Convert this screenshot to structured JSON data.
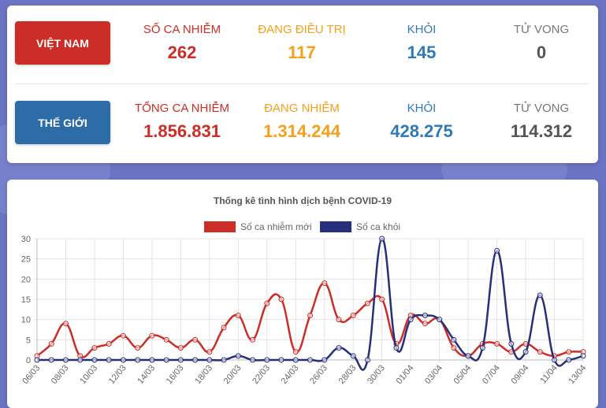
{
  "vietnam": {
    "label": "VIỆT NAM",
    "stats": [
      {
        "label": "SỐ CA NHIỄM",
        "value": "262"
      },
      {
        "label": "ĐANG ĐIỀU TRỊ",
        "value": "117"
      },
      {
        "label": "KHỎI",
        "value": "145"
      },
      {
        "label": "TỬ VONG",
        "value": "0"
      }
    ]
  },
  "world": {
    "label": "THẾ GIỚI",
    "stats": [
      {
        "label": "TỔNG CA NHIỄM",
        "value": "1.856.831"
      },
      {
        "label": "ĐANG NHIỄM",
        "value": "1.314.244"
      },
      {
        "label": "KHỎI",
        "value": "428.275"
      },
      {
        "label": "TỬ VONG",
        "value": "114.312"
      }
    ]
  },
  "colors": {
    "red": "#cb2d27",
    "orange": "#f5a01a",
    "blue": "#2e7ab8",
    "navy": "#26307a",
    "gray": "#555555"
  },
  "chart_data": {
    "type": "line",
    "title": "Thống kê tình hình dịch bệnh COVID-19",
    "xlabel": "",
    "ylabel": "",
    "ylim": [
      0,
      30
    ],
    "yticks": [
      0,
      5,
      10,
      15,
      20,
      25,
      30
    ],
    "grid": true,
    "legend_position": "top",
    "categories": [
      "06/03",
      "07/03",
      "08/03",
      "09/03",
      "10/03",
      "11/03",
      "12/03",
      "13/03",
      "14/03",
      "15/03",
      "16/03",
      "17/03",
      "18/03",
      "19/03",
      "20/03",
      "21/03",
      "22/03",
      "23/03",
      "24/03",
      "25/03",
      "26/03",
      "27/03",
      "28/03",
      "29/03",
      "30/03",
      "31/03",
      "01/04",
      "02/04",
      "03/04",
      "04/04",
      "05/04",
      "06/04",
      "07/04",
      "08/04",
      "09/04",
      "10/04",
      "11/04",
      "12/04",
      "13/04"
    ],
    "tick_labels": [
      "06/03",
      "08/03",
      "10/03",
      "12/03",
      "14/03",
      "16/03",
      "18/03",
      "20/03",
      "22/03",
      "24/03",
      "26/03",
      "28/03",
      "30/03",
      "01/04",
      "03/04",
      "05/04",
      "07/04",
      "09/04",
      "11/04",
      "13/04"
    ],
    "series": [
      {
        "name": "Số ca nhiễm mới",
        "color": "#cb2d27",
        "values": [
          1,
          4,
          9,
          1,
          3,
          4,
          6,
          3,
          6,
          5,
          3,
          5,
          2,
          8,
          11,
          5,
          14,
          15,
          2,
          11,
          19,
          10,
          11,
          14,
          15,
          4,
          11,
          9,
          10,
          3,
          1,
          4,
          4,
          2,
          4,
          2,
          1,
          2,
          2
        ]
      },
      {
        "name": "Số ca khỏi",
        "color": "#26307a",
        "values": [
          0,
          0,
          0,
          0,
          0,
          0,
          0,
          0,
          0,
          0,
          0,
          0,
          0,
          0,
          1,
          0,
          0,
          0,
          0,
          0,
          0,
          3,
          1,
          0,
          30,
          3,
          10,
          11,
          10,
          5,
          1,
          3,
          27,
          4,
          2,
          16,
          0,
          0,
          1
        ]
      }
    ]
  }
}
